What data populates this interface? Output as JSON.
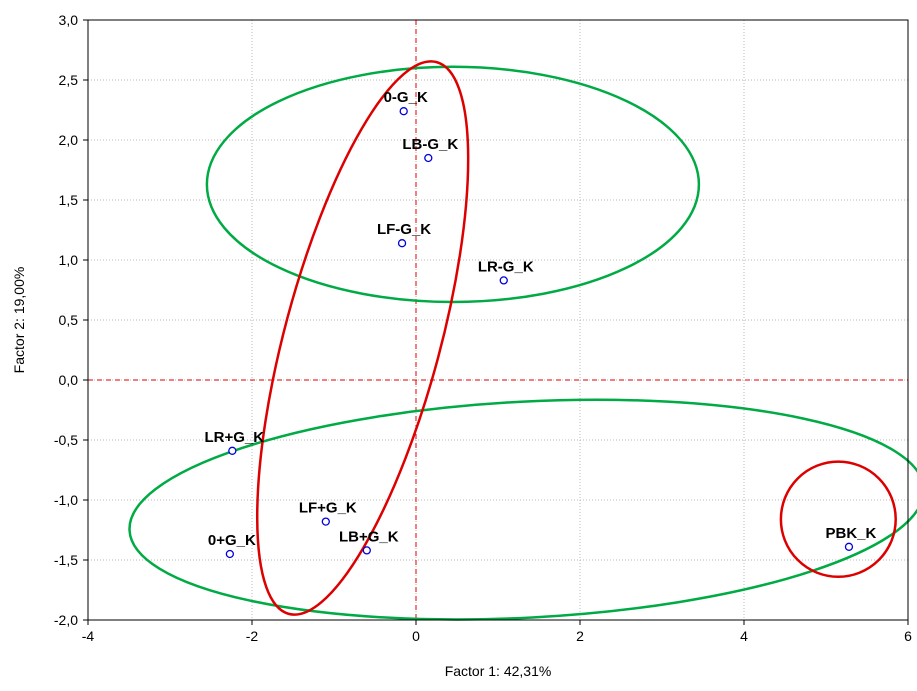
{
  "chart_data": {
    "type": "scatter",
    "xlabel": "Factor 1: 42,31%",
    "ylabel": "Factor 2: 19,00%",
    "xlim": [
      -4,
      6
    ],
    "ylim": [
      -2,
      3
    ],
    "xticks": [
      "-4",
      "-2",
      "0",
      "2",
      "4",
      "6"
    ],
    "yticks": [
      "-2,0",
      "-1,5",
      "-1,0",
      "-0,5",
      "0,0",
      "0,5",
      "1,0",
      "1,5",
      "2,0",
      "2,5",
      "3,0"
    ],
    "grid": true,
    "reference_lines": {
      "x": 0,
      "y": 0,
      "color": "#e00000",
      "style": "dashed"
    },
    "points": [
      {
        "label": "0-G_K",
        "x": -0.15,
        "y": 2.24
      },
      {
        "label": "LB-G_K",
        "x": 0.15,
        "y": 1.85
      },
      {
        "label": "LF-G_K",
        "x": -0.17,
        "y": 1.14
      },
      {
        "label": "LR-G_K",
        "x": 1.07,
        "y": 0.83
      },
      {
        "label": "LR+G_K",
        "x": -2.24,
        "y": -0.59
      },
      {
        "label": "LF+G_K",
        "x": -1.1,
        "y": -1.18
      },
      {
        "label": "0+G_K",
        "x": -2.27,
        "y": -1.45
      },
      {
        "label": "LB+G_K",
        "x": -0.6,
        "y": -1.42
      },
      {
        "label": "PBK_K",
        "x": 5.28,
        "y": -1.39
      }
    ],
    "marker_color": "#0000dd",
    "ellipses": [
      {
        "color": "#00aa44",
        "cx": 0.45,
        "cy": 1.63,
        "rx": 3.0,
        "ry": 0.98,
        "rotation": 0
      },
      {
        "color": "#00aa44",
        "cx": 1.35,
        "cy": -1.08,
        "rx": 4.85,
        "ry": 0.9,
        "rotation": -3
      },
      {
        "color": "#dd0000",
        "cx": -0.65,
        "cy": 0.35,
        "rx": 0.95,
        "ry": 2.38,
        "rotation": 15
      },
      {
        "color": "#dd0000",
        "cx": 5.15,
        "cy": -1.16,
        "rx": 0.7,
        "ry": 0.48,
        "rotation": 0
      }
    ]
  }
}
